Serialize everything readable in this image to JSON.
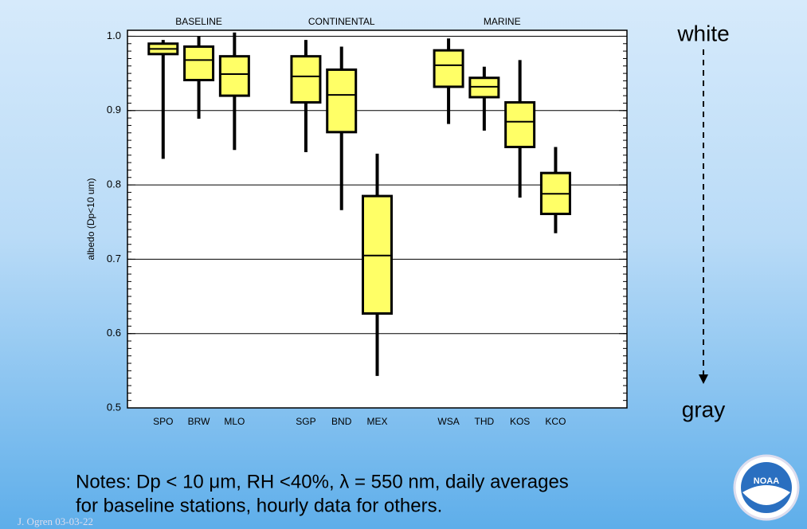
{
  "chart_data": {
    "type": "box",
    "ylabel": "albedo (Dp<10 um)",
    "ylim": [
      0.5,
      1.008
    ],
    "yticks": [
      0.5,
      0.6,
      0.7,
      0.8,
      0.9,
      {
        "value": 1.0,
        "label": "1.0"
      }
    ],
    "minor_tick_step": 0.01,
    "grid": true,
    "color": "#ffff66",
    "groups": [
      {
        "label": "BASELINE",
        "boxes": [
          {
            "name": "SPO",
            "whisker_low": 0.835,
            "q1": 0.976,
            "median": 0.983,
            "q3": 0.99,
            "whisker_high": 0.995
          },
          {
            "name": "BRW",
            "whisker_low": 0.889,
            "q1": 0.941,
            "median": 0.968,
            "q3": 0.986,
            "whisker_high": 1.0
          },
          {
            "name": "MLO",
            "whisker_low": 0.847,
            "q1": 0.92,
            "median": 0.949,
            "q3": 0.973,
            "whisker_high": 1.005
          }
        ]
      },
      {
        "label": "CONTINENTAL",
        "boxes": [
          {
            "name": "SGP",
            "whisker_low": 0.844,
            "q1": 0.911,
            "median": 0.946,
            "q3": 0.973,
            "whisker_high": 0.995
          },
          {
            "name": "BND",
            "whisker_low": 0.766,
            "q1": 0.871,
            "median": 0.921,
            "q3": 0.955,
            "whisker_high": 0.986
          },
          {
            "name": "MEX",
            "whisker_low": 0.543,
            "q1": 0.627,
            "median": 0.705,
            "q3": 0.785,
            "whisker_high": 0.842
          }
        ]
      },
      {
        "label": "MARINE",
        "boxes": [
          {
            "name": "WSA",
            "whisker_low": 0.882,
            "q1": 0.932,
            "median": 0.961,
            "q3": 0.981,
            "whisker_high": 0.997
          },
          {
            "name": "THD",
            "whisker_low": 0.873,
            "q1": 0.918,
            "median": 0.932,
            "q3": 0.944,
            "whisker_high": 0.959
          },
          {
            "name": "KOS",
            "whisker_low": 0.783,
            "q1": 0.851,
            "median": 0.885,
            "q3": 0.911,
            "whisker_high": 0.968
          },
          {
            "name": "KCO",
            "whisker_low": 0.735,
            "q1": 0.761,
            "median": 0.788,
            "q3": 0.816,
            "whisker_high": 0.851
          }
        ]
      }
    ]
  },
  "slide": {
    "scale_top": "white",
    "scale_bottom": "gray",
    "notes": [
      "Notes: Dp < 10 μm, RH <40%, λ = 550 nm, daily averages",
      "for baseline stations, hourly data for others."
    ],
    "credit": "J. Ogren  03-03-22",
    "logo": "NOAA"
  }
}
